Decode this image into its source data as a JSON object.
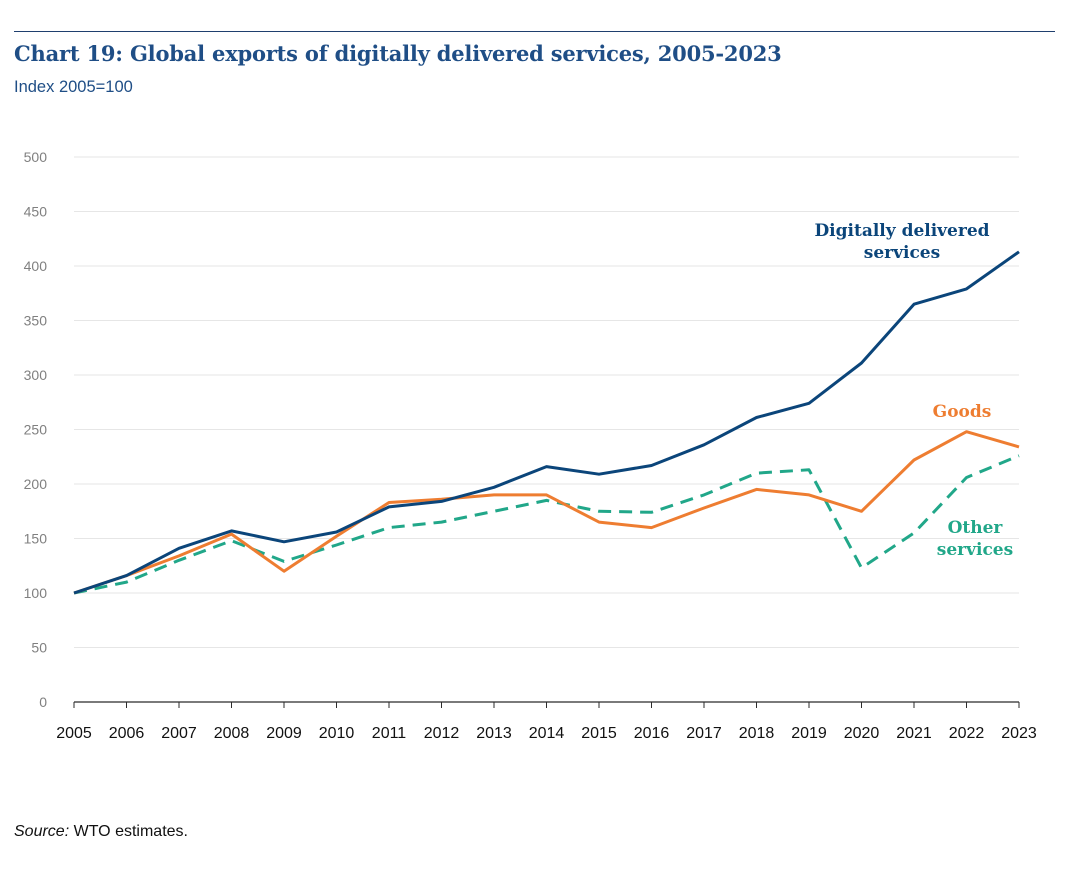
{
  "header": {
    "title": "Chart 19: Global exports of digitally delivered services, 2005-2023",
    "subtitle": "Index 2005=100"
  },
  "source": {
    "label": "Source:",
    "text": " WTO estimates."
  },
  "colors": {
    "digital": "#0b457a",
    "goods": "#ee7d31",
    "other": "#21a789",
    "grid": "#e6e6e6",
    "axis": "#2b2b2b",
    "y_tick": "#808080"
  },
  "chart_data": {
    "type": "line",
    "title": "Chart 19: Global exports of digitally delivered services, 2005-2023",
    "subtitle": "Index 2005=100",
    "xlabel": "",
    "ylabel": "",
    "ylim": [
      0,
      500
    ],
    "y_ticks": [
      "0",
      "50",
      "100",
      "150",
      "200",
      "250",
      "300",
      "350",
      "400",
      "450",
      "500"
    ],
    "grid": true,
    "legend": "inline labels",
    "x": [
      "2005",
      "2006",
      "2007",
      "2008",
      "2009",
      "2010",
      "2011",
      "2012",
      "2013",
      "2014",
      "2015",
      "2016",
      "2017",
      "2018",
      "2019",
      "2020",
      "2021",
      "2022",
      "2023"
    ],
    "series": [
      {
        "name": "Digitally delivered services",
        "label_lines": [
          "Digitally delivered",
          "services"
        ],
        "color": "#0b457a",
        "style": "solid",
        "values": [
          100,
          116,
          141,
          157,
          147,
          156,
          179,
          184,
          197,
          216,
          209,
          217,
          236,
          261,
          274,
          311,
          365,
          379,
          413
        ]
      },
      {
        "name": "Goods",
        "label_lines": [
          "Goods"
        ],
        "color": "#ee7d31",
        "style": "solid",
        "values": [
          100,
          116,
          134,
          154,
          120,
          152,
          183,
          186,
          190,
          190,
          165,
          160,
          178,
          195,
          190,
          175,
          222,
          248,
          234
        ]
      },
      {
        "name": "Other services",
        "label_lines": [
          "Other",
          "services"
        ],
        "color": "#21a789",
        "style": "dashed",
        "values": [
          100,
          110,
          130,
          148,
          129,
          144,
          160,
          165,
          175,
          185,
          175,
          174,
          190,
          210,
          213,
          123,
          155,
          206,
          226
        ]
      }
    ]
  }
}
